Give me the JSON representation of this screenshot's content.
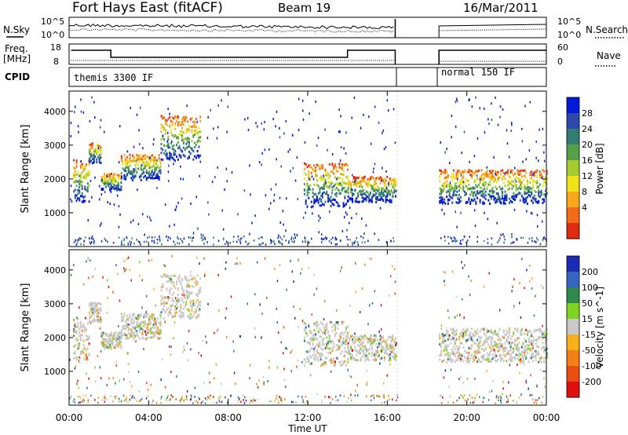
{
  "header": {
    "title": "Fort Hays East (fitACF)",
    "beam": "Beam 19",
    "date": "16/Mar/2011"
  },
  "side_labels": {
    "nsky": "N.Sky",
    "nsearch": "N.Search",
    "freq": "Freq.",
    "freq_unit": "[MHz]",
    "nave": "Nave",
    "cpid": "CPID"
  },
  "cpid_modes": [
    "themis 3300 IF",
    "normal 150 IF"
  ],
  "noise_axis": {
    "left_ticks": [
      "10^5",
      "10^0"
    ],
    "right_ticks": [
      "10^5",
      "10^0"
    ]
  },
  "freq_axis": {
    "left_ticks": [
      "18",
      "8"
    ],
    "right_ticks": [
      "60",
      "0"
    ]
  },
  "time_axis": {
    "label": "Time UT",
    "ticks": [
      "00:00",
      "04:00",
      "08:00",
      "12:00",
      "16:00",
      "20:00",
      "00:00"
    ],
    "range_hours": [
      0,
      24
    ]
  },
  "chart_data": [
    {
      "type": "heatmap",
      "name": "power-panel",
      "ylabel": "Slant Range [km]",
      "ylim": [
        0,
        4600
      ],
      "y_ticks": [
        1000,
        2000,
        3000,
        4000
      ],
      "colorbar": {
        "label": "Power [dB]",
        "ticks": [
          "28",
          "24",
          "20",
          "16",
          "12",
          "8",
          "4"
        ],
        "colors": [
          "#0018d8",
          "#2a49a8",
          "#2f7d75",
          "#56a04a",
          "#a5cc2e",
          "#f2e21a",
          "#f9a81a",
          "#f26b16",
          "#e02b10"
        ]
      },
      "gap_hours": [
        16.5,
        18.6
      ],
      "bands": [
        {
          "t0": 0.2,
          "t1": 1.0,
          "r0": 1350,
          "r1": 2600
        },
        {
          "t0": 1.0,
          "t1": 1.6,
          "r0": 2500,
          "r1": 3100
        },
        {
          "t0": 1.6,
          "t1": 2.6,
          "r0": 1700,
          "r1": 2200
        },
        {
          "t0": 2.6,
          "t1": 4.6,
          "r0": 2000,
          "r1": 2750
        },
        {
          "t0": 4.6,
          "t1": 6.6,
          "r0": 2600,
          "r1": 3900
        },
        {
          "t0": 11.8,
          "t1": 14.0,
          "r0": 1200,
          "r1": 2500
        },
        {
          "t0": 14.0,
          "t1": 16.4,
          "r0": 1350,
          "r1": 2100
        },
        {
          "t0": 18.6,
          "t1": 24.0,
          "r0": 1300,
          "r1": 2300
        }
      ]
    },
    {
      "type": "heatmap",
      "name": "velocity-panel",
      "ylabel": "Slant Range [km]",
      "ylim": [
        0,
        4600
      ],
      "y_ticks": [
        1000,
        2000,
        3000,
        4000
      ],
      "colorbar": {
        "label": "Velocity [m s^-1]",
        "ticks": [
          "200",
          "100",
          "50",
          "15",
          "-15",
          "-50",
          "-100",
          "-200"
        ],
        "colors": [
          "#1c2bb5",
          "#3567c0",
          "#2f8a4e",
          "#7ed321",
          "#c8c8c8",
          "#f7b01a",
          "#f57f17",
          "#e94e12",
          "#e01010"
        ]
      },
      "gap_hours": [
        16.5,
        18.6
      ],
      "bands": [
        {
          "t0": 0.2,
          "t1": 1.0,
          "r0": 1350,
          "r1": 2600
        },
        {
          "t0": 1.0,
          "t1": 1.6,
          "r0": 2500,
          "r1": 3100
        },
        {
          "t0": 1.6,
          "t1": 2.6,
          "r0": 1700,
          "r1": 2200
        },
        {
          "t0": 2.6,
          "t1": 4.6,
          "r0": 2000,
          "r1": 2750
        },
        {
          "t0": 4.6,
          "t1": 6.6,
          "r0": 2600,
          "r1": 3900
        },
        {
          "t0": 11.8,
          "t1": 14.0,
          "r0": 1200,
          "r1": 2500
        },
        {
          "t0": 14.0,
          "t1": 16.4,
          "r0": 1350,
          "r1": 2100
        },
        {
          "t0": 18.6,
          "t1": 24.0,
          "r0": 1300,
          "r1": 2300
        }
      ]
    }
  ]
}
